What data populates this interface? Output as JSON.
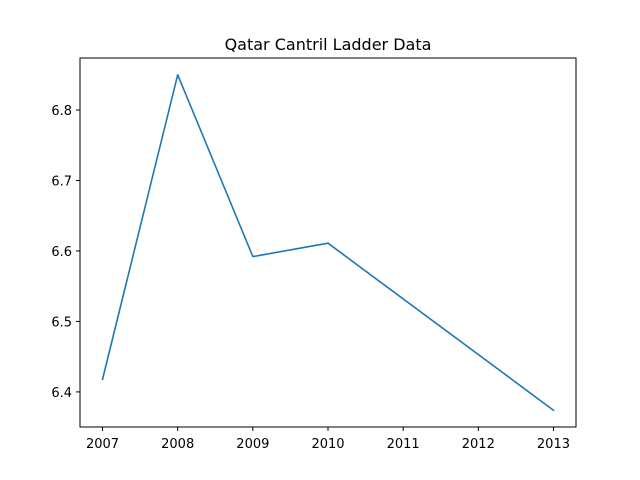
{
  "chart_data": {
    "type": "line",
    "title": "Qatar Cantril Ladder Data",
    "xlabel": "",
    "ylabel": "",
    "x": [
      2007,
      2008,
      2009,
      2010,
      2013
    ],
    "series": [
      {
        "values": [
          6.418,
          6.85,
          6.592,
          6.611,
          6.374
        ],
        "color": "#1f77b4"
      }
    ],
    "x_ticks": [
      "2007",
      "2008",
      "2009",
      "2010",
      "2011",
      "2012",
      "2013"
    ],
    "y_ticks": [
      "6.4",
      "6.5",
      "6.6",
      "6.7",
      "6.8"
    ],
    "xlim": [
      2006.7,
      2013.3
    ],
    "ylim": [
      6.3502,
      6.8738
    ],
    "grid": false,
    "legend": "none"
  }
}
